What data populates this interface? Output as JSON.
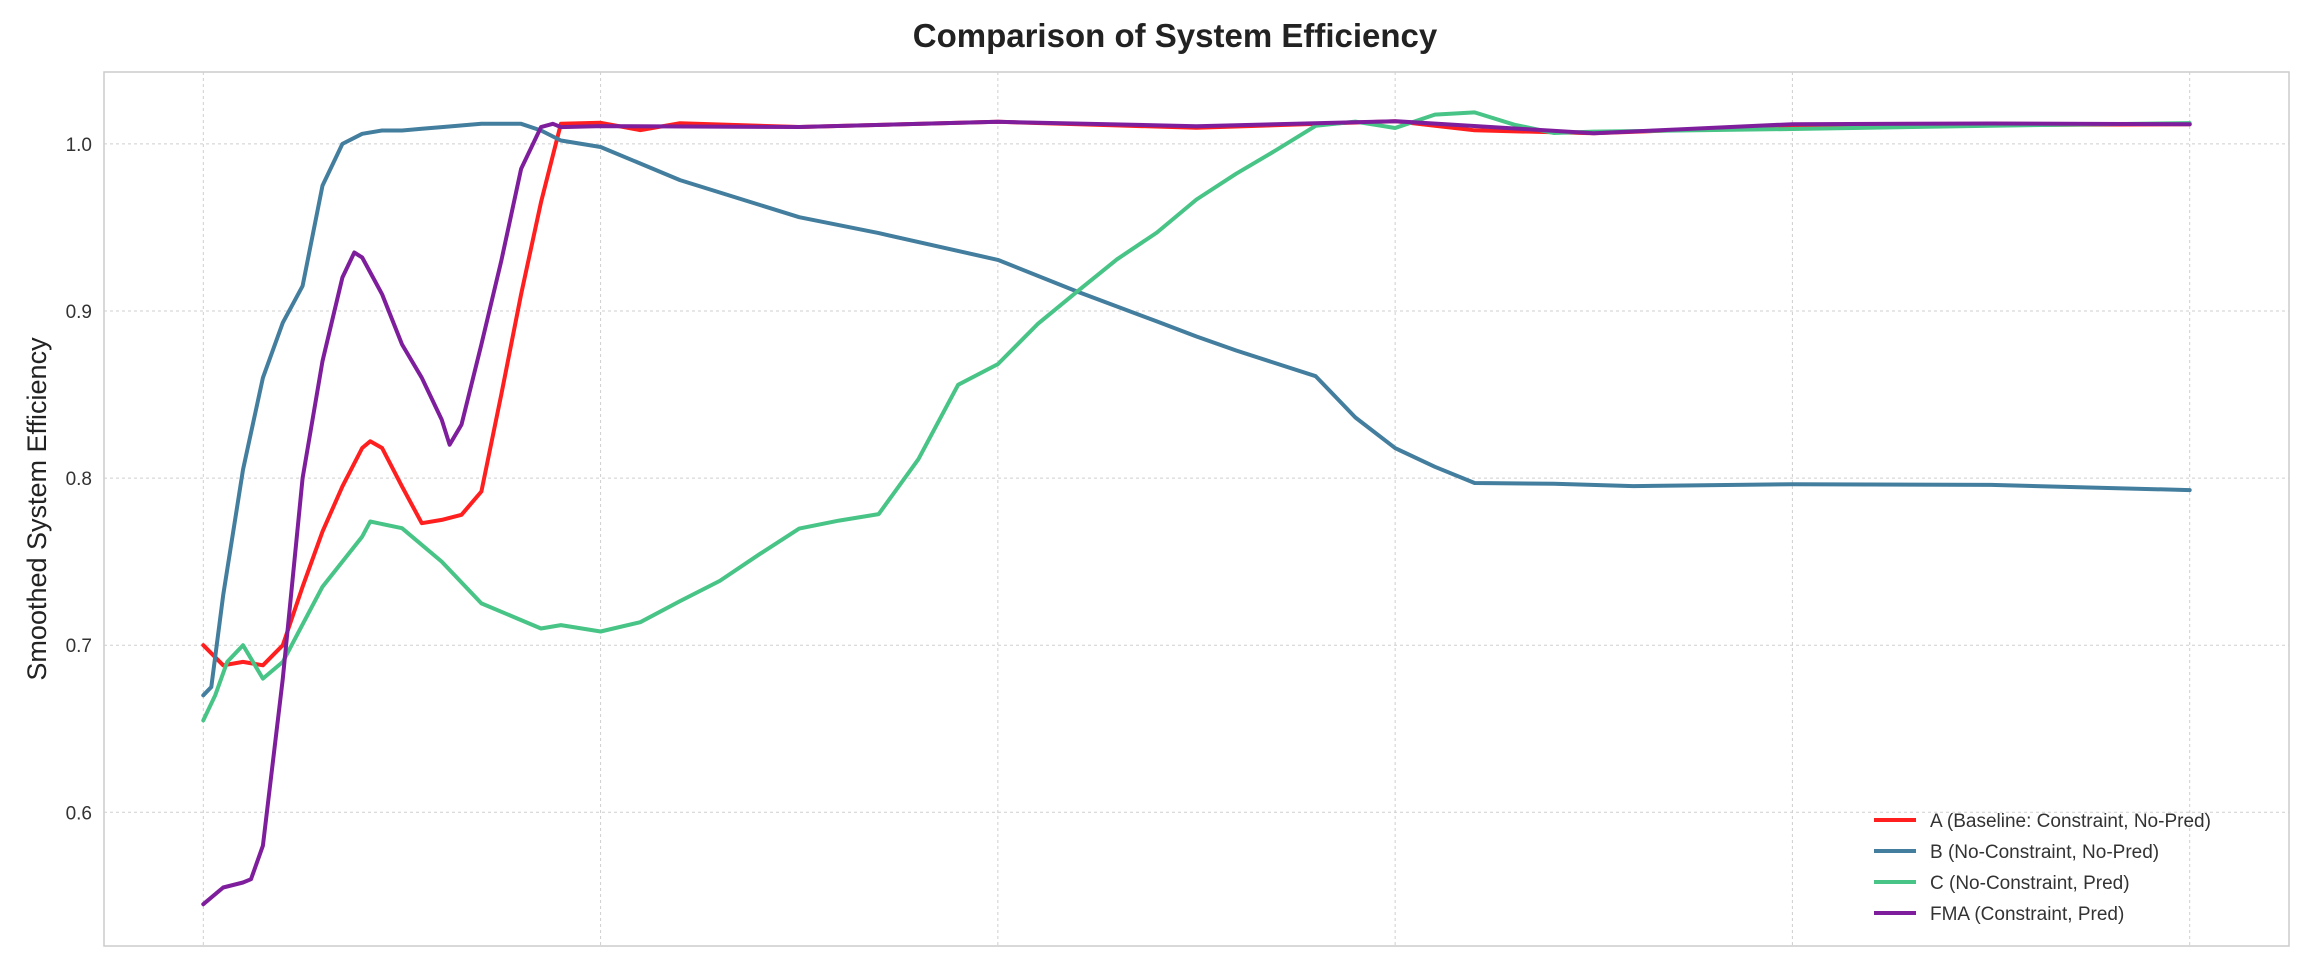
{
  "chart_data": {
    "type": "line",
    "title": "Comparison of System Efficiency",
    "xlabel": "",
    "ylabel": "Smoothed System Efficiency",
    "xlim": [
      -25,
      525
    ],
    "ylim": [
      0.52,
      1.043
    ],
    "x_ticks": [
      0,
      100,
      200,
      300,
      400,
      500
    ],
    "y_ticks": [
      0.6,
      0.7,
      0.8,
      0.9,
      1.0
    ],
    "y_tick_labels": [
      "0.6",
      "0.7",
      "0.8",
      "0.9",
      "1.0"
    ],
    "grid": true,
    "legend_position": "bottom-right",
    "series": [
      {
        "name": "A (Baseline: Constraint, No-Pred)",
        "color": "#ff1f1f",
        "x": [
          0,
          5,
          10,
          15,
          20,
          25,
          30,
          35,
          40,
          42,
          45,
          50,
          55,
          60,
          65,
          70,
          75,
          80,
          85,
          90,
          95,
          100,
          110,
          120,
          150,
          200,
          250,
          300,
          320,
          350,
          400,
          450,
          500
        ],
        "y": [
          0.7,
          0.688,
          0.69,
          0.688,
          0.7,
          0.735,
          0.768,
          0.795,
          0.818,
          0.822,
          0.818,
          0.795,
          0.773,
          0.775,
          0.778,
          0.792,
          0.85,
          0.91,
          0.965,
          1.012,
          1.014,
          1.012,
          1.01,
          1.012,
          1.011,
          1.012,
          1.011,
          1.012,
          1.009,
          1.008,
          1.009,
          1.013,
          1.01
        ]
      },
      {
        "name": "B (No-Constraint, No-Pred)",
        "color": "#437e9e",
        "x": [
          0,
          2,
          5,
          10,
          15,
          20,
          25,
          30,
          35,
          40,
          45,
          50,
          55,
          60,
          70,
          80,
          85,
          90,
          100,
          120,
          150,
          170,
          200,
          220,
          240,
          250,
          260,
          280,
          290,
          300,
          310,
          320,
          340,
          360,
          400,
          450,
          500
        ],
        "y": [
          0.67,
          0.675,
          0.73,
          0.805,
          0.86,
          0.893,
          0.915,
          0.975,
          1.0,
          1.006,
          1.008,
          1.008,
          1.009,
          1.01,
          1.012,
          1.012,
          1.008,
          1.002,
          0.997,
          0.98,
          0.957,
          0.945,
          0.93,
          0.913,
          0.892,
          0.885,
          0.878,
          0.86,
          0.838,
          0.818,
          0.805,
          0.798,
          0.795,
          0.797,
          0.797,
          0.795,
          0.794
        ]
      },
      {
        "name": "C (No-Constraint, Pred)",
        "color": "#47c486",
        "x": [
          0,
          3,
          6,
          10,
          15,
          20,
          30,
          40,
          42,
          50,
          60,
          70,
          80,
          85,
          90,
          100,
          110,
          120,
          130,
          140,
          150,
          160,
          170,
          180,
          190,
          200,
          210,
          220,
          230,
          240,
          250,
          260,
          270,
          280,
          290,
          300,
          310,
          320,
          330,
          340,
          350,
          400,
          450,
          500
        ],
        "y": [
          0.655,
          0.67,
          0.69,
          0.7,
          0.68,
          0.69,
          0.735,
          0.765,
          0.774,
          0.77,
          0.75,
          0.725,
          0.715,
          0.71,
          0.712,
          0.71,
          0.713,
          0.725,
          0.74,
          0.755,
          0.768,
          0.775,
          0.78,
          0.81,
          0.855,
          0.87,
          0.892,
          0.91,
          0.932,
          0.948,
          0.965,
          0.982,
          0.998,
          1.01,
          1.012,
          1.011,
          1.018,
          1.017,
          1.012,
          1.008,
          1.006,
          1.01,
          1.01,
          1.013
        ]
      },
      {
        "name": "FMA (Constraint, Pred)",
        "color": "#7e1e9c",
        "x": [
          0,
          5,
          10,
          12,
          15,
          20,
          25,
          30,
          35,
          38,
          40,
          45,
          50,
          55,
          60,
          62,
          65,
          70,
          75,
          80,
          85,
          88,
          90,
          100,
          150,
          200,
          250,
          300,
          350,
          400,
          450,
          500
        ],
        "y": [
          0.545,
          0.555,
          0.558,
          0.56,
          0.58,
          0.68,
          0.8,
          0.87,
          0.92,
          0.935,
          0.932,
          0.91,
          0.88,
          0.86,
          0.835,
          0.82,
          0.832,
          0.88,
          0.93,
          0.985,
          1.01,
          1.012,
          1.01,
          1.01,
          1.011,
          1.012,
          1.012,
          1.012,
          1.008,
          1.01,
          1.014,
          1.01
        ]
      }
    ]
  }
}
